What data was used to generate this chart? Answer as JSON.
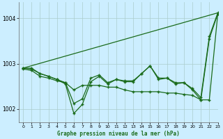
{
  "title": "Graphe pression niveau de la mer (hPa)",
  "background_color": "#cceeff",
  "grid_color": "#aacccc",
  "line_color": "#1a6b1a",
  "xlim": [
    -0.5,
    23
  ],
  "ylim": [
    1001.7,
    1004.35
  ],
  "yticks": [
    1002,
    1003,
    1004
  ],
  "xticks": [
    0,
    1,
    2,
    3,
    4,
    5,
    6,
    7,
    8,
    9,
    10,
    11,
    12,
    13,
    14,
    15,
    16,
    17,
    18,
    19,
    20,
    21,
    22,
    23
  ],
  "series_zigzag": [
    1002.9,
    1002.9,
    1002.78,
    1002.72,
    1002.65,
    1002.55,
    1001.9,
    1002.1,
    1002.6,
    1002.72,
    1002.55,
    1002.65,
    1002.6,
    1002.6,
    1002.78,
    1002.95,
    1002.65,
    1002.68,
    1002.55,
    1002.58,
    1002.42,
    1002.2,
    1003.55,
    1004.1
  ],
  "series_zigzag2": [
    1002.9,
    1002.88,
    1002.78,
    1002.72,
    1002.65,
    1002.58,
    1002.12,
    1002.22,
    1002.68,
    1002.75,
    1002.58,
    1002.65,
    1002.62,
    1002.62,
    1002.78,
    1002.95,
    1002.68,
    1002.68,
    1002.58,
    1002.58,
    1002.45,
    1002.25,
    1003.6,
    1004.12
  ],
  "series_diagonal": [
    [
      0,
      1002.9
    ],
    [
      23,
      1004.12
    ]
  ],
  "series_decline": [
    1002.88,
    1002.85,
    1002.72,
    1002.68,
    1002.62,
    1002.58,
    1002.42,
    1002.52,
    1002.52,
    1002.52,
    1002.48,
    1002.48,
    1002.42,
    1002.38,
    1002.38,
    1002.38,
    1002.38,
    1002.35,
    1002.35,
    1002.32,
    1002.3,
    1002.2,
    1002.2,
    1004.1
  ]
}
